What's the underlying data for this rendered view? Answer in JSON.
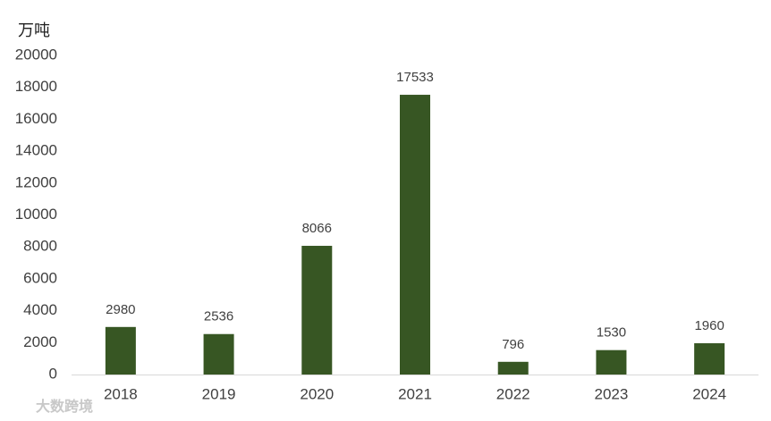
{
  "chart_data": {
    "type": "bar",
    "y_label": "万吨",
    "categories": [
      "2018",
      "2019",
      "2020",
      "2021",
      "2022",
      "2023",
      "2024"
    ],
    "values": [
      2980,
      2536,
      8066,
      17533,
      796,
      1530,
      1960
    ],
    "color": "#375623",
    "ylim": [
      0,
      20000
    ],
    "yticks": [
      0,
      2000,
      4000,
      6000,
      8000,
      10000,
      12000,
      14000,
      16000,
      18000,
      20000
    ],
    "grid": false,
    "watermark": "大数跨境"
  }
}
